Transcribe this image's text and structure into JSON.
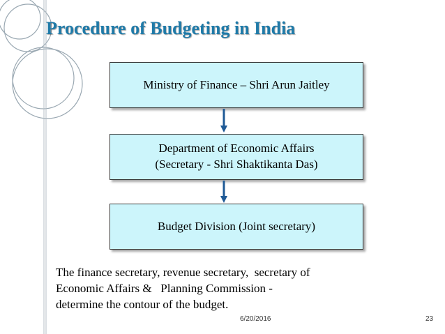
{
  "slide": {
    "title": "Procedure of Budgeting in India",
    "boxes": {
      "ministry": "Ministry of Finance – Shri Arun Jaitley",
      "department_line1": "Department of Economic Affairs",
      "department_line2": "(Secretary - Shri Shaktikanta Das)",
      "division": "Budget Division (Joint secretary)"
    },
    "note_lines": [
      "The finance secretary, revenue secretary,  secretary of",
      "Economic Affairs &   Planning Commission -",
      "determine the contour of the budget."
    ],
    "footer": {
      "date": "6/20/2016",
      "page": "23"
    }
  },
  "colors": {
    "title": "#1f7aa8",
    "box_fill": "#ccf5fb",
    "arrow": "#1f5a96",
    "decor": "#9aa8b2"
  }
}
